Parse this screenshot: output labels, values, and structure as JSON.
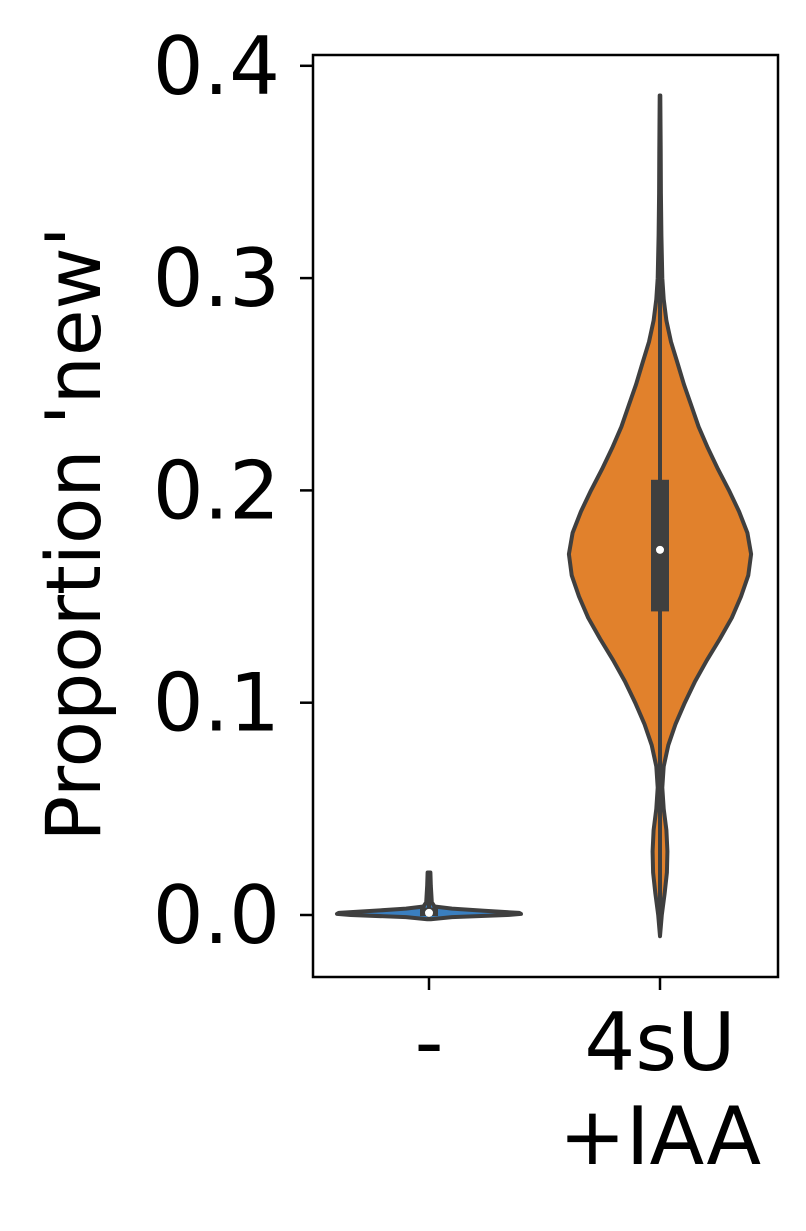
{
  "chart_data": {
    "type": "violin",
    "title": "",
    "xlabel": "",
    "ylabel": "Proportion 'new'",
    "ylim": [
      -0.029,
      0.405
    ],
    "yticks": [
      0.0,
      0.1,
      0.2,
      0.3,
      0.4
    ],
    "ytick_labels": [
      "0.0",
      "0.1",
      "0.2",
      "0.3",
      "0.4"
    ],
    "categories": [
      "-",
      "4sU\n+IAA"
    ],
    "category_lines": [
      [
        "-"
      ],
      [
        "4sU",
        "+IAA"
      ]
    ],
    "grid": false,
    "colors": {
      "violin_neg": "#3a7fc0",
      "violin_iaa": "#e1812c",
      "outline": "#3f3f3f",
      "box": "#3f3f3f",
      "median": "#ffffff"
    },
    "violins": [
      {
        "category": "-",
        "min": -0.002,
        "q1": -0.0005,
        "median": 0.001,
        "q3": 0.0035,
        "max": 0.02,
        "density": [
          [
            -0.002,
            0.02
          ],
          [
            -0.001,
            0.25
          ],
          [
            0.0,
            0.85
          ],
          [
            0.0005,
            1.0
          ],
          [
            0.001,
            0.98
          ],
          [
            0.002,
            0.6
          ],
          [
            0.003,
            0.25
          ],
          [
            0.004,
            0.06
          ],
          [
            0.006,
            0.03
          ],
          [
            0.01,
            0.025
          ],
          [
            0.014,
            0.02
          ],
          [
            0.02,
            0.015
          ]
        ]
      },
      {
        "category": "4sU +IAA",
        "min": -0.01,
        "q1": 0.143,
        "median": 0.172,
        "q3": 0.205,
        "max": 0.386,
        "density": [
          [
            -0.01,
            0.0
          ],
          [
            0.0,
            0.02
          ],
          [
            0.01,
            0.05
          ],
          [
            0.02,
            0.075
          ],
          [
            0.03,
            0.08
          ],
          [
            0.04,
            0.07
          ],
          [
            0.05,
            0.04
          ],
          [
            0.06,
            0.025
          ],
          [
            0.07,
            0.04
          ],
          [
            0.08,
            0.09
          ],
          [
            0.09,
            0.17
          ],
          [
            0.1,
            0.27
          ],
          [
            0.11,
            0.38
          ],
          [
            0.12,
            0.51
          ],
          [
            0.13,
            0.65
          ],
          [
            0.14,
            0.78
          ],
          [
            0.15,
            0.88
          ],
          [
            0.16,
            0.96
          ],
          [
            0.17,
            0.99
          ],
          [
            0.18,
            0.95
          ],
          [
            0.19,
            0.86
          ],
          [
            0.2,
            0.75
          ],
          [
            0.21,
            0.63
          ],
          [
            0.22,
            0.52
          ],
          [
            0.23,
            0.42
          ],
          [
            0.24,
            0.34
          ],
          [
            0.25,
            0.26
          ],
          [
            0.26,
            0.19
          ],
          [
            0.27,
            0.12
          ],
          [
            0.28,
            0.07
          ],
          [
            0.29,
            0.04
          ],
          [
            0.3,
            0.025
          ],
          [
            0.32,
            0.015
          ],
          [
            0.34,
            0.01
          ],
          [
            0.36,
            0.008
          ],
          [
            0.386,
            0.003
          ]
        ]
      }
    ]
  }
}
